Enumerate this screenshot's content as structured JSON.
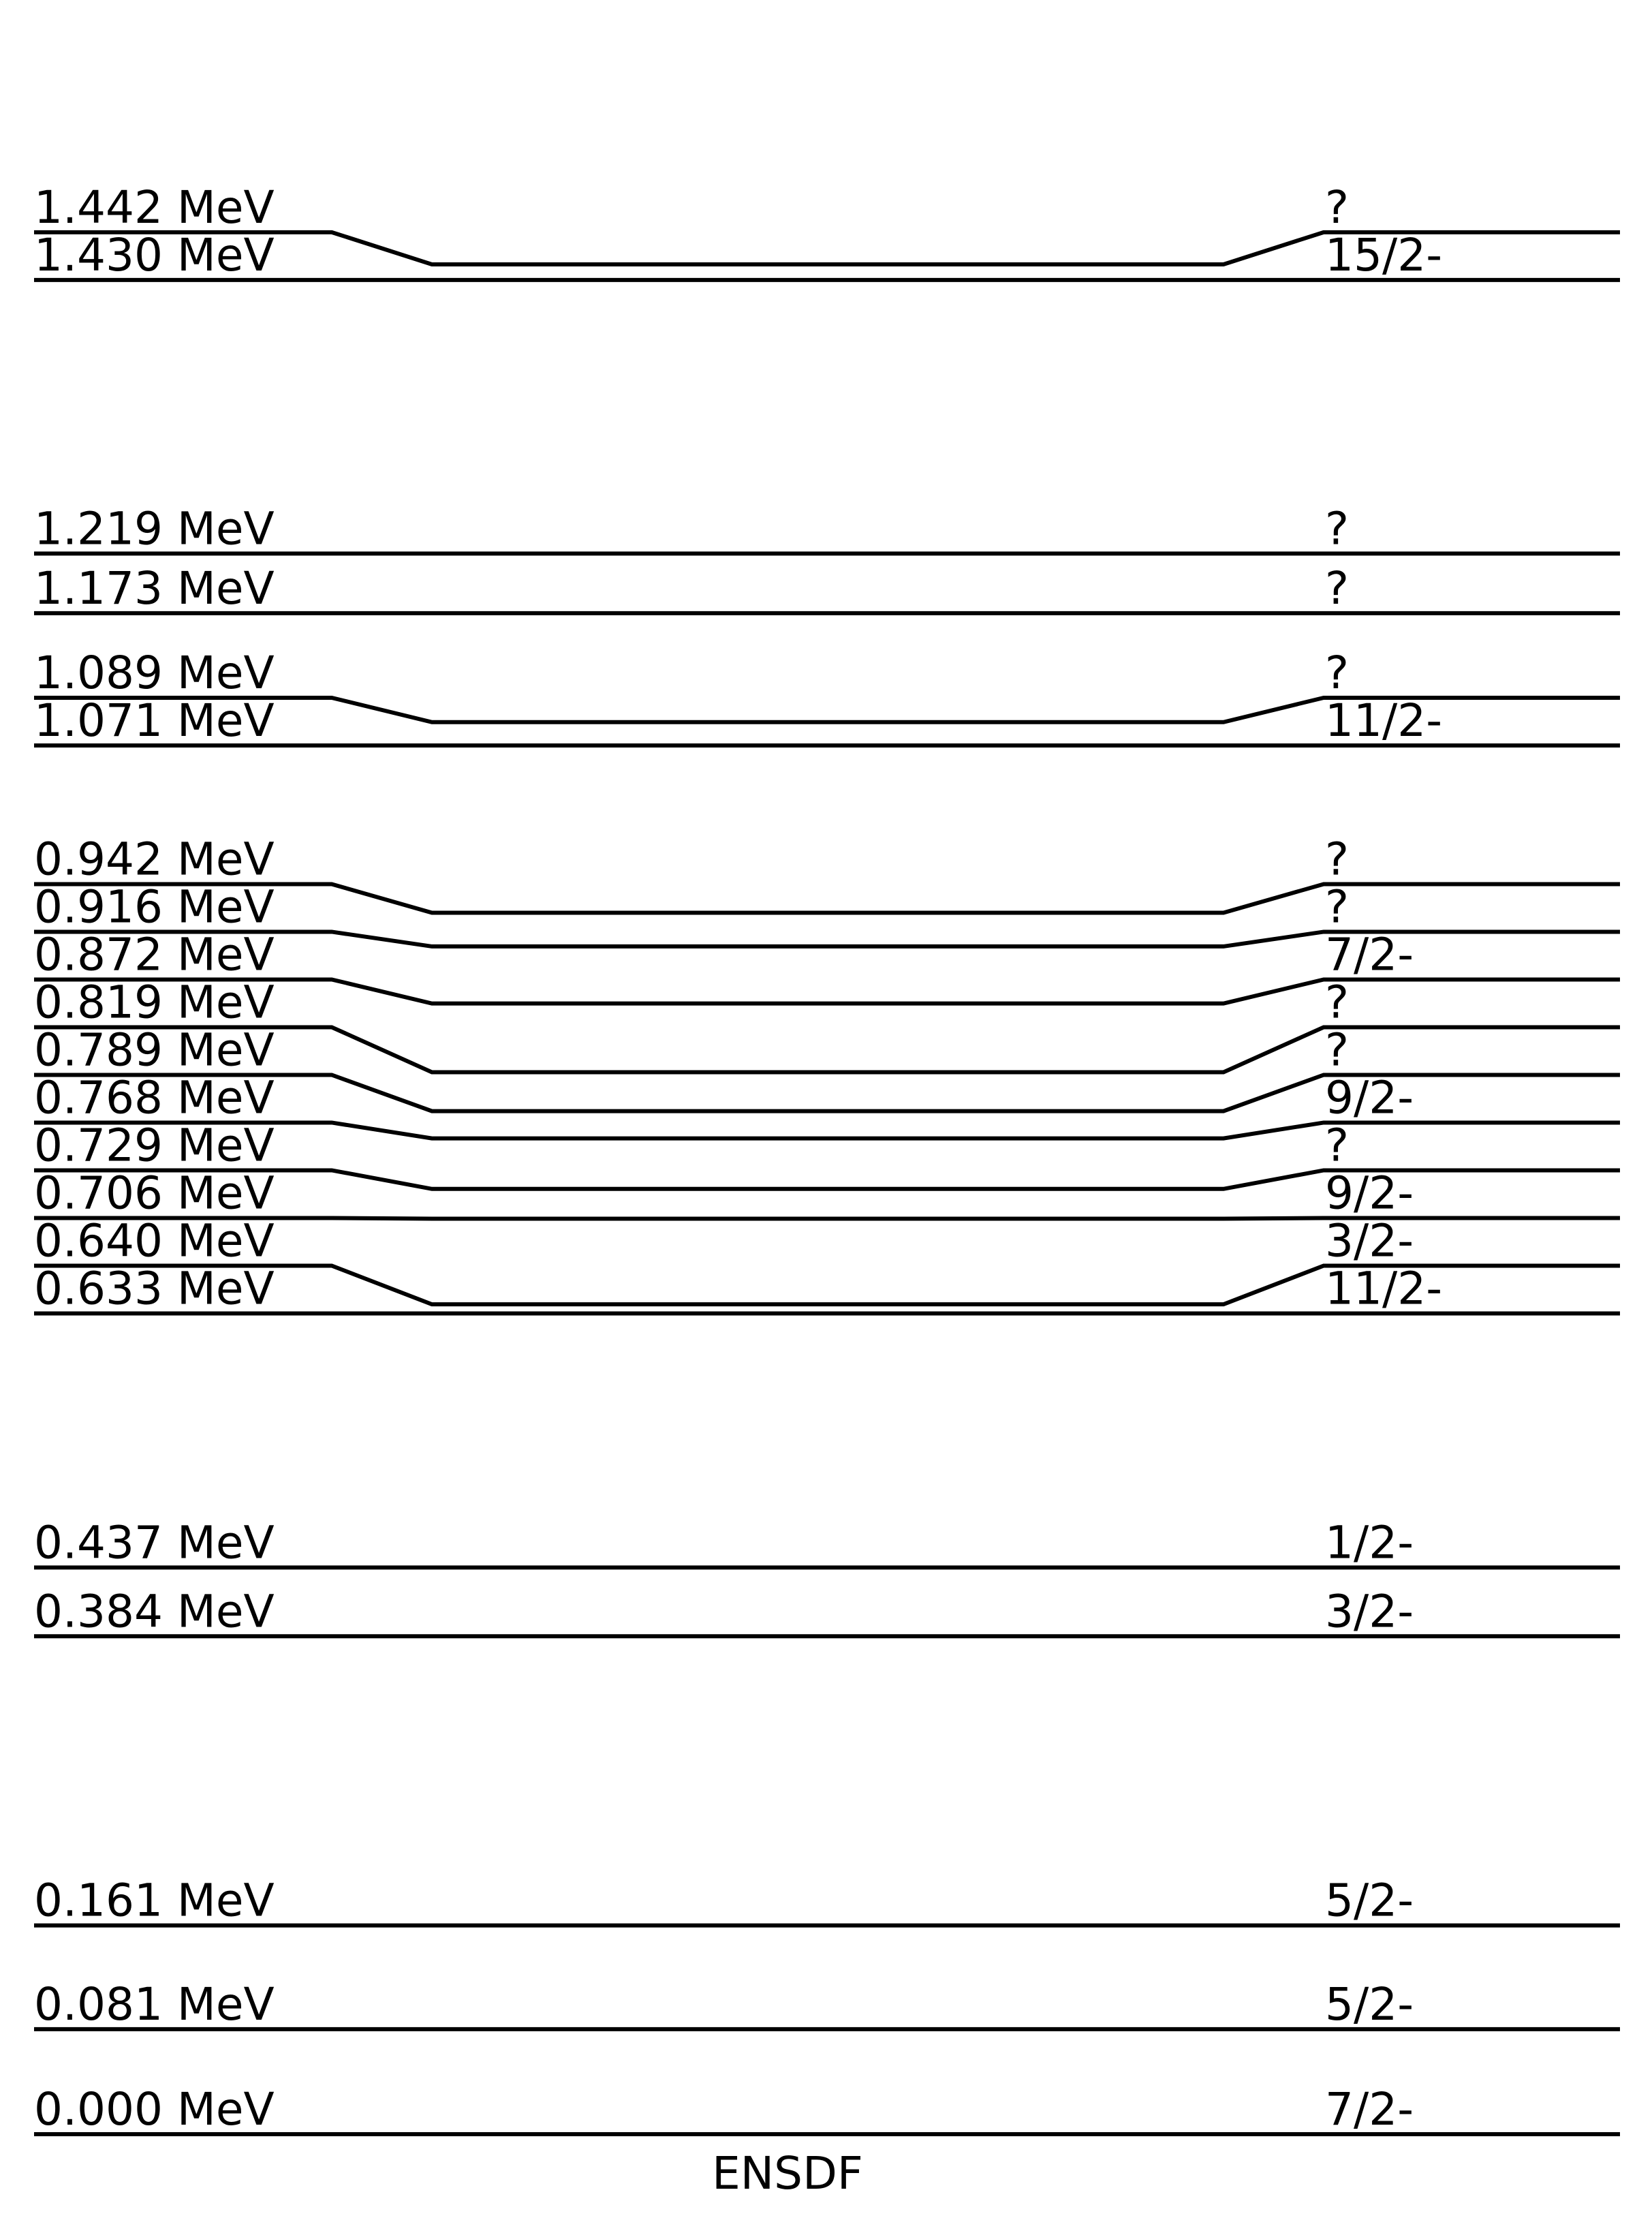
{
  "chart_data": {
    "type": "level-scheme",
    "title": "",
    "xlabel": "ENSDF",
    "unit": "MeV",
    "levels": [
      {
        "energy": 1.442,
        "energy_label": "1.442 MeV",
        "spin_parity": "?"
      },
      {
        "energy": 1.43,
        "energy_label": "1.430 MeV",
        "spin_parity": "15/2-"
      },
      {
        "energy": 1.219,
        "energy_label": "1.219 MeV",
        "spin_parity": "?"
      },
      {
        "energy": 1.173,
        "energy_label": "1.173 MeV",
        "spin_parity": "?"
      },
      {
        "energy": 1.089,
        "energy_label": "1.089 MeV",
        "spin_parity": "?"
      },
      {
        "energy": 1.071,
        "energy_label": "1.071 MeV",
        "spin_parity": "11/2-"
      },
      {
        "energy": 0.942,
        "energy_label": "0.942 MeV",
        "spin_parity": "?"
      },
      {
        "energy": 0.916,
        "energy_label": "0.916 MeV",
        "spin_parity": "?"
      },
      {
        "energy": 0.872,
        "energy_label": "0.872 MeV",
        "spin_parity": "7/2-"
      },
      {
        "energy": 0.819,
        "energy_label": "0.819 MeV",
        "spin_parity": "?"
      },
      {
        "energy": 0.789,
        "energy_label": "0.789 MeV",
        "spin_parity": "?"
      },
      {
        "energy": 0.768,
        "energy_label": "0.768 MeV",
        "spin_parity": "9/2-"
      },
      {
        "energy": 0.729,
        "energy_label": "0.729 MeV",
        "spin_parity": "?"
      },
      {
        "energy": 0.706,
        "energy_label": "0.706 MeV",
        "spin_parity": "9/2-"
      },
      {
        "energy": 0.64,
        "energy_label": "0.640 MeV",
        "spin_parity": "3/2-"
      },
      {
        "energy": 0.633,
        "energy_label": "0.633 MeV",
        "spin_parity": "11/2-"
      },
      {
        "energy": 0.437,
        "energy_label": "0.437 MeV",
        "spin_parity": "1/2-"
      },
      {
        "energy": 0.384,
        "energy_label": "0.384 MeV",
        "spin_parity": "3/2-"
      },
      {
        "energy": 0.161,
        "energy_label": "0.161 MeV",
        "spin_parity": "5/2-"
      },
      {
        "energy": 0.081,
        "energy_label": "0.081 MeV",
        "spin_parity": "5/2-"
      },
      {
        "energy": 0.0,
        "energy_label": "0.000 MeV",
        "spin_parity": "7/2-"
      }
    ]
  }
}
